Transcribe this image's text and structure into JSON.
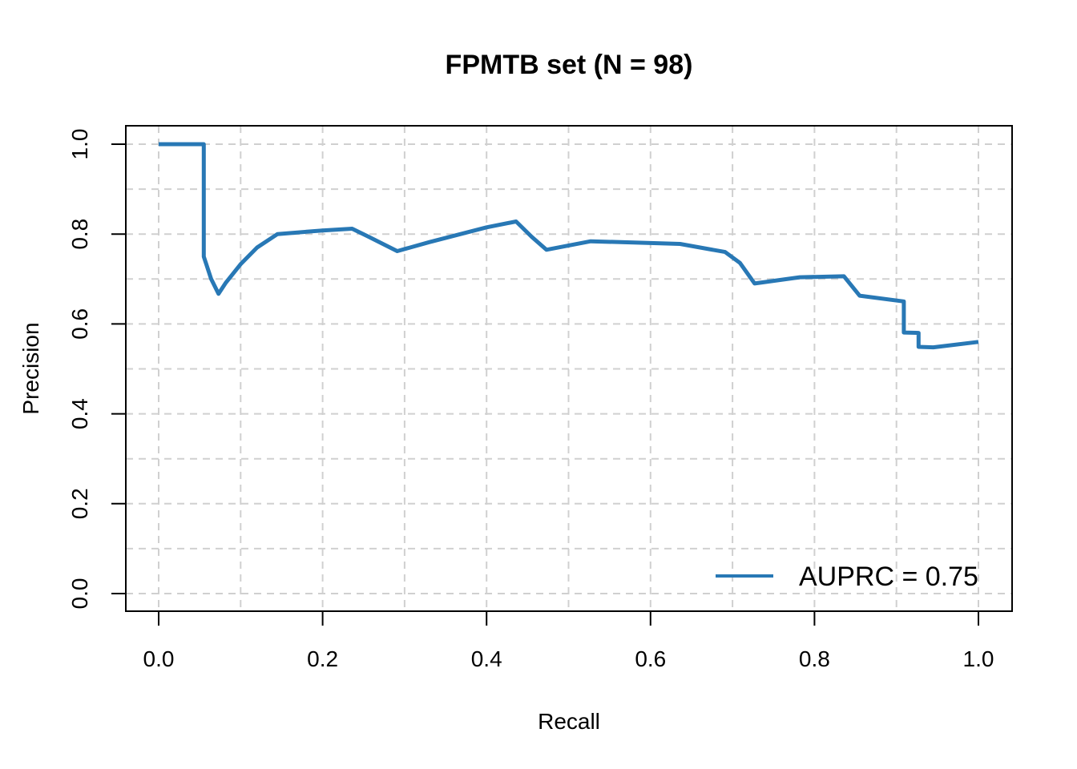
{
  "chart_data": {
    "type": "line",
    "title": "FPMTB set (N = 98)",
    "xlabel": "Recall",
    "ylabel": "Precision",
    "xlim": [
      0.0,
      1.0
    ],
    "ylim": [
      0.0,
      1.0
    ],
    "x_ticks": [
      "0.0",
      "0.2",
      "0.4",
      "0.6",
      "0.8",
      "1.0"
    ],
    "y_ticks": [
      "0.0",
      "0.2",
      "0.4",
      "0.6",
      "0.8",
      "1.0"
    ],
    "grid": true,
    "legend_position": "bottom-right",
    "series": [
      {
        "name": "AUPRC = 0.75",
        "color": "#2878b5",
        "x": [
          0.0,
          0.055,
          0.055,
          0.064,
          0.073,
          0.082,
          0.1,
          0.12,
          0.145,
          0.2,
          0.236,
          0.255,
          0.291,
          0.33,
          0.4,
          0.436,
          0.455,
          0.473,
          0.527,
          0.6,
          0.636,
          0.691,
          0.709,
          0.727,
          0.782,
          0.836,
          0.855,
          0.909,
          0.909,
          0.927,
          0.927,
          0.945,
          1.0
        ],
        "y": [
          1.0,
          1.0,
          0.75,
          0.7,
          0.667,
          0.692,
          0.733,
          0.77,
          0.8,
          0.808,
          0.812,
          0.795,
          0.762,
          0.782,
          0.815,
          0.828,
          0.794,
          0.765,
          0.784,
          0.78,
          0.778,
          0.76,
          0.736,
          0.69,
          0.704,
          0.706,
          0.663,
          0.65,
          0.581,
          0.58,
          0.549,
          0.548,
          0.56
        ]
      }
    ]
  }
}
